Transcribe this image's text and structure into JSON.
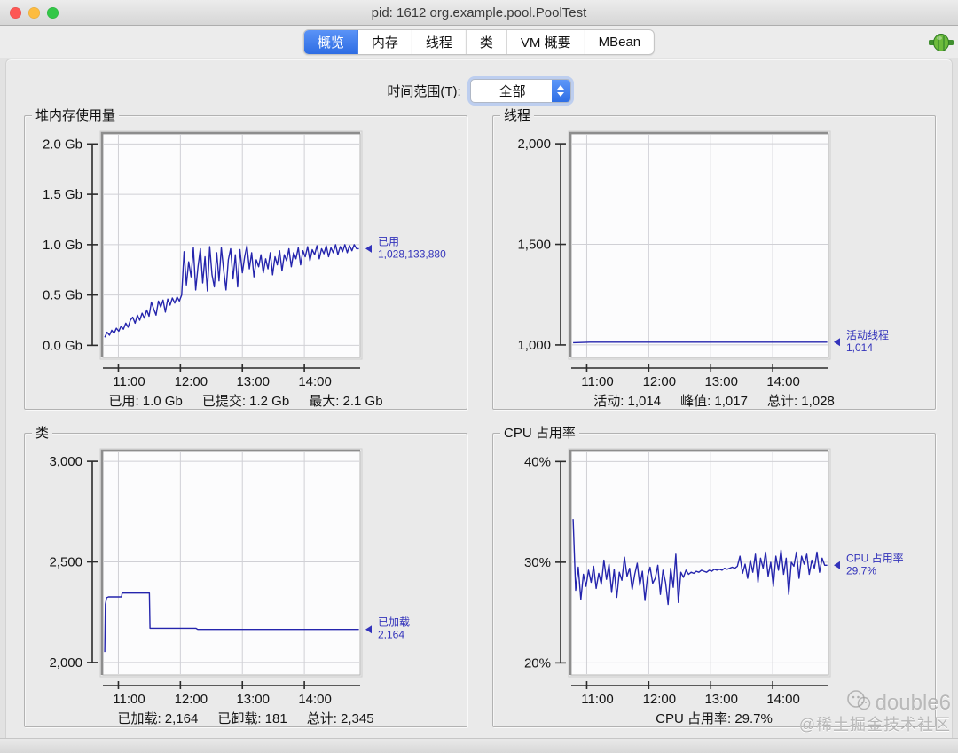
{
  "window": {
    "title": "pid: 1612 org.example.pool.PoolTest"
  },
  "titlebar_buttons": {
    "close_color": "#fd5754",
    "minimize_color": "#fdbc40",
    "zoom_color": "#33c748"
  },
  "tabs": [
    {
      "id": "overview",
      "label": "概览",
      "active": true
    },
    {
      "id": "memory",
      "label": "内存",
      "active": false
    },
    {
      "id": "threads",
      "label": "线程",
      "active": false
    },
    {
      "id": "classes",
      "label": "类",
      "active": false
    },
    {
      "id": "vm-summary",
      "label": "VM 概要",
      "active": false
    },
    {
      "id": "mbean",
      "label": "MBean",
      "active": false
    }
  ],
  "connection_icon": "green-plug-connected",
  "time_range": {
    "label": "时间范围(T):",
    "value": "全部"
  },
  "colors": {
    "series": "#2525ad",
    "annotation": "#3333bb",
    "grid": "#d0d0d5",
    "axis": "#2b2b2b",
    "plot_bg": "#fcfcfd",
    "tab_active": "#2d6ce3"
  },
  "watermark": {
    "line1": "double6",
    "line2": "@稀土掘金技术社区"
  },
  "chart_data": [
    {
      "id": "heap",
      "type": "line",
      "title": "堆内存使用量",
      "annotation": [
        "已用",
        "1,028,133,880"
      ],
      "yticks": [
        {
          "label": "2.0 Gb",
          "v": 2.0
        },
        {
          "label": "1.5 Gb",
          "v": 1.5
        },
        {
          "label": "1.0 Gb",
          "v": 1.0
        },
        {
          "label": "0.5 Gb",
          "v": 0.5
        },
        {
          "label": "0.0 Gb",
          "v": 0.0
        }
      ],
      "xticks": [
        {
          "label": "11:00",
          "v": 11
        },
        {
          "label": "12:00",
          "v": 12
        },
        {
          "label": "13:00",
          "v": 13
        },
        {
          "label": "14:00",
          "v": 14
        }
      ],
      "ylim": [
        -0.12,
        2.1
      ],
      "xlim": [
        10.75,
        14.9
      ],
      "x_start": 10.78,
      "x_end": 14.88,
      "values": [
        0.08,
        0.13,
        0.1,
        0.15,
        0.12,
        0.17,
        0.14,
        0.19,
        0.16,
        0.22,
        0.18,
        0.25,
        0.28,
        0.22,
        0.3,
        0.25,
        0.32,
        0.27,
        0.35,
        0.29,
        0.43,
        0.36,
        0.3,
        0.44,
        0.38,
        0.45,
        0.33,
        0.46,
        0.4,
        0.47,
        0.42,
        0.48,
        0.44,
        0.5,
        0.93,
        0.6,
        0.83,
        0.68,
        0.97,
        0.55,
        0.78,
        0.96,
        0.62,
        0.88,
        0.54,
        0.98,
        0.7,
        0.58,
        0.92,
        0.64,
        0.97,
        0.75,
        0.55,
        0.85,
        0.96,
        0.66,
        0.9,
        0.58,
        0.95,
        0.72,
        0.88,
        0.99,
        0.76,
        0.92,
        0.68,
        0.85,
        0.78,
        0.9,
        0.72,
        0.86,
        0.76,
        0.92,
        0.7,
        0.88,
        0.8,
        0.94,
        0.74,
        0.9,
        0.84,
        0.96,
        0.78,
        0.92,
        0.86,
        0.97,
        0.8,
        0.94,
        0.88,
        0.98,
        0.84,
        0.95,
        0.9,
        0.99,
        0.86,
        0.96,
        0.91,
        0.99,
        0.88,
        0.97,
        0.92,
        1.0,
        0.9,
        0.98,
        0.93,
        1.0,
        0.92,
        0.99,
        0.94,
        1.0,
        0.96,
        0.96
      ],
      "summary": [
        "已用: 1.0 Gb",
        "已提交: 1.2 Gb",
        "最大: 2.1 Gb"
      ]
    },
    {
      "id": "threads",
      "type": "line",
      "title": "线程",
      "annotation": [
        "活动线程",
        "1,014"
      ],
      "yticks": [
        {
          "label": "2,000",
          "v": 2000
        },
        {
          "label": "1,500",
          "v": 1500
        },
        {
          "label": "1,000",
          "v": 1000
        }
      ],
      "xticks": [
        {
          "label": "11:00",
          "v": 11
        },
        {
          "label": "12:00",
          "v": 12
        },
        {
          "label": "13:00",
          "v": 13
        },
        {
          "label": "14:00",
          "v": 14
        }
      ],
      "ylim": [
        938,
        2049
      ],
      "xlim": [
        10.75,
        14.9
      ],
      "x_start": 10.78,
      "x_end": 14.88,
      "values": [
        1011,
        1014,
        1014,
        1014,
        1014,
        1014,
        1014,
        1014,
        1014,
        1014,
        1014,
        1014,
        1014,
        1014,
        1014,
        1014
      ],
      "summary": [
        "活动: 1,014",
        "峰值: 1,017",
        "总计: 1,028"
      ]
    },
    {
      "id": "classes",
      "type": "line",
      "title": "类",
      "annotation": [
        "已加载",
        "2,164"
      ],
      "yticks": [
        {
          "label": "3,000",
          "v": 3000
        },
        {
          "label": "2,500",
          "v": 2500
        },
        {
          "label": "2,000",
          "v": 2000
        }
      ],
      "xticks": [
        {
          "label": "11:00",
          "v": 11
        },
        {
          "label": "12:00",
          "v": 12
        },
        {
          "label": "13:00",
          "v": 13
        },
        {
          "label": "14:00",
          "v": 14
        }
      ],
      "ylim": [
        1938,
        3049
      ],
      "xlim": [
        10.75,
        14.9
      ],
      "points": [
        [
          10.78,
          2052
        ],
        [
          10.79,
          2290
        ],
        [
          10.81,
          2322
        ],
        [
          10.84,
          2326
        ],
        [
          11.05,
          2326
        ],
        [
          11.06,
          2345
        ],
        [
          11.5,
          2345
        ],
        [
          11.51,
          2170
        ],
        [
          12.25,
          2170
        ],
        [
          12.28,
          2164
        ],
        [
          14.88,
          2164
        ]
      ],
      "summary": [
        "已加载: 2,164",
        "已卸载: 181",
        "总计: 2,345"
      ]
    },
    {
      "id": "cpu",
      "type": "line",
      "title": "CPU 占用率",
      "annotation": [
        "CPU 占用率",
        "29.7%"
      ],
      "yticks": [
        {
          "label": "40%",
          "v": 40
        },
        {
          "label": "30%",
          "v": 30
        },
        {
          "label": "20%",
          "v": 20
        }
      ],
      "xticks": [
        {
          "label": "11:00",
          "v": 11
        },
        {
          "label": "12:00",
          "v": 12
        },
        {
          "label": "13:00",
          "v": 13
        },
        {
          "label": "14:00",
          "v": 14
        }
      ],
      "ylim": [
        18.8,
        41.0
      ],
      "xlim": [
        10.75,
        14.9
      ],
      "x_start": 10.78,
      "x_end": 14.88,
      "values": [
        34.3,
        27.2,
        29.5,
        26.3,
        28.8,
        27.6,
        29.2,
        28.0,
        29.6,
        27.4,
        28.9,
        27.8,
        30.2,
        28.3,
        29.8,
        27.0,
        29.3,
        26.5,
        29.0,
        28.2,
        30.5,
        28.6,
        29.4,
        27.3,
        28.8,
        29.9,
        27.7,
        29.1,
        26.2,
        28.6,
        29.5,
        27.9,
        28.4,
        29.7,
        26.8,
        29.2,
        28.0,
        25.8,
        29.4,
        27.5,
        30.8,
        26.0,
        29.0,
        28.5,
        29.2,
        28.8,
        29.0,
        28.9,
        29.1,
        29.0,
        29.2,
        29.1,
        29.0,
        29.2,
        29.1,
        29.3,
        29.2,
        29.3,
        29.2,
        29.4,
        29.3,
        29.4,
        29.5,
        29.4,
        29.6,
        30.6,
        28.9,
        29.8,
        28.4,
        30.2,
        29.0,
        30.8,
        28.0,
        30.4,
        29.4,
        31.0,
        28.6,
        30.0,
        27.6,
        30.6,
        29.2,
        31.2,
        28.8,
        30.4,
        26.8,
        30.0,
        29.6,
        31.0,
        28.4,
        30.6,
        29.8,
        30.8,
        28.8,
        30.2,
        29.4,
        31.0,
        29.0,
        30.4,
        29.7,
        29.7
      ],
      "summary": [
        "CPU 占用率: 29.7%"
      ]
    }
  ]
}
